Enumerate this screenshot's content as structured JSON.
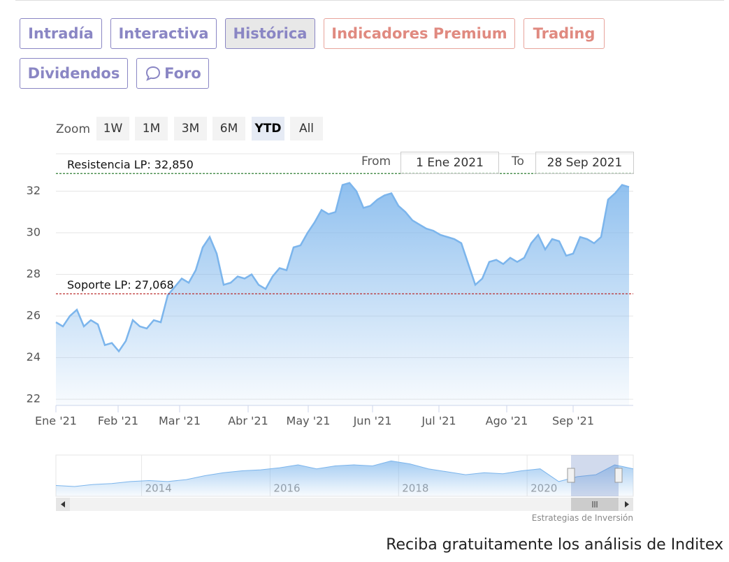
{
  "tabs": [
    "Intradía",
    "Interactiva",
    "Histórica",
    "Indicadores Premium",
    "Trading",
    "Dividendos",
    "Foro"
  ],
  "zoom": {
    "label": "Zoom",
    "buttons": [
      "1W",
      "1M",
      "3M",
      "6M",
      "YTD",
      "All"
    ]
  },
  "range": {
    "from_label": "From",
    "from": "1 Ene 2021",
    "to_label": "To",
    "to": "28 Sep 2021"
  },
  "chart_data": [
    {
      "type": "area",
      "color": "#7cb5ec",
      "values": [
        25.7,
        25.5,
        26.0,
        26.3,
        25.5,
        25.8,
        25.6,
        24.6,
        24.7,
        24.3,
        24.8,
        25.8,
        25.5,
        25.4,
        25.8,
        25.7,
        27.0,
        27.4,
        27.8,
        27.6,
        28.2,
        29.3,
        29.8,
        29.0,
        27.5,
        27.6,
        27.9,
        27.8,
        28.0,
        27.5,
        27.3,
        27.9,
        28.3,
        28.2,
        29.3,
        29.4,
        30.0,
        30.5,
        31.1,
        30.9,
        31.0,
        32.3,
        32.4,
        32.0,
        31.2,
        31.3,
        31.6,
        31.8,
        31.9,
        31.3,
        31.0,
        30.6,
        30.4,
        30.2,
        30.1,
        29.9,
        29.8,
        29.7,
        29.5,
        28.5,
        27.5,
        27.8,
        28.6,
        28.7,
        28.5,
        28.8,
        28.6,
        28.8,
        29.5,
        29.9,
        29.2,
        29.7,
        29.6,
        28.9,
        29.0,
        29.8,
        29.7,
        29.5,
        29.8,
        31.6,
        31.9,
        32.3,
        32.2
      ],
      "xlim": [
        0,
        82.6
      ],
      "xticks": [
        {
          "value": 0,
          "label": "Ene '21"
        },
        {
          "value": 8.9,
          "label": "Feb '21"
        },
        {
          "value": 17.7,
          "label": "Mar '21"
        },
        {
          "value": 27.5,
          "label": "Abr '21"
        },
        {
          "value": 36.1,
          "label": "May '21"
        },
        {
          "value": 45.3,
          "label": "Jun '21"
        },
        {
          "value": 54.8,
          "label": "Jul '21"
        },
        {
          "value": 64.5,
          "label": "Ago '21"
        },
        {
          "value": 74,
          "label": "Sep '21"
        }
      ],
      "ylim": [
        21.7,
        33.8
      ],
      "yticks": [
        22,
        24,
        26,
        28,
        30,
        32
      ],
      "grid": true,
      "plot_lines": [
        {
          "value": 32.85,
          "label": "Resistencia LP: 32,850",
          "color": "#2e7d32"
        },
        {
          "value": 27.068,
          "label": "Soporte LP: 27,068",
          "color": "#b71c1c"
        }
      ]
    },
    {
      "type": "area",
      "color": "#7cb5ec",
      "values": [
        20.5,
        20,
        21,
        21.5,
        22.5,
        23,
        22.5,
        23.5,
        25.5,
        27,
        28,
        28.5,
        29.5,
        31,
        29,
        30.5,
        31,
        30.5,
        33,
        31.5,
        29,
        27.5,
        26,
        27,
        26.5,
        28,
        29,
        22.5,
        25,
        26,
        31,
        29
      ],
      "xlim": [
        0,
        31
      ],
      "xticks": [
        {
          "value": 4.6,
          "label": "2014"
        },
        {
          "value": 11.5,
          "label": "2016"
        },
        {
          "value": 18.4,
          "label": "2018"
        },
        {
          "value": 25.3,
          "label": "2020"
        }
      ],
      "ylim": [
        15,
        36
      ]
    }
  ],
  "credit": "Estrategias de Inversión",
  "footer": "Reciba gratuitamente los análisis de Inditex"
}
